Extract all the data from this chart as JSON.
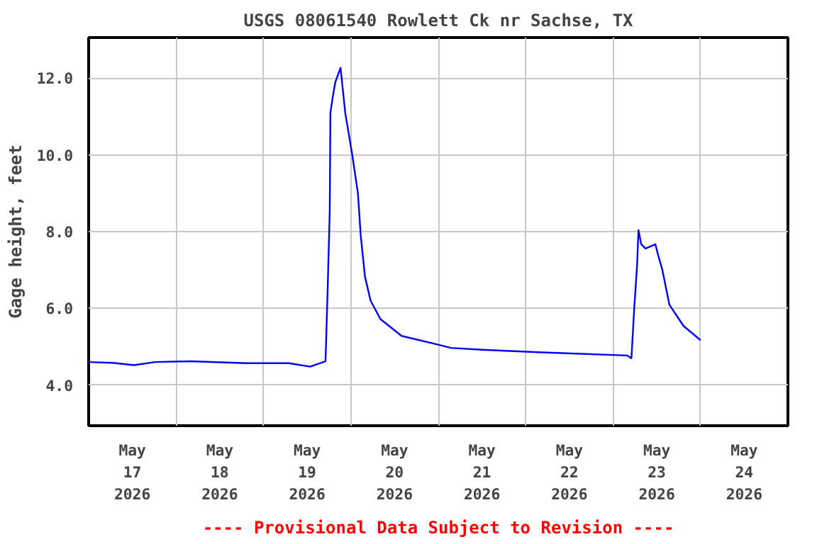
{
  "chart_data": {
    "type": "line",
    "title": "USGS 08061540 Rowlett Ck nr Sachse, TX",
    "ylabel": "Gage height, feet",
    "annotations": [
      "---- Provisional Data Subject to Revision ----"
    ],
    "x": [
      "2026-05-17T00:00",
      "2026-05-17T06:35",
      "2026-05-17T12:25",
      "2026-05-17T18:12",
      "2026-05-18T03:52",
      "2026-05-18T19:21",
      "2026-05-19T07:00",
      "2026-05-19T12:46",
      "2026-05-19T17:02",
      "2026-05-19T17:37",
      "2026-05-19T18:12",
      "2026-05-19T18:23",
      "2026-05-19T19:00",
      "2026-05-19T19:44",
      "2026-05-19T21:10",
      "2026-05-19T22:27",
      "2026-05-20T00:23",
      "2026-05-20T01:56",
      "2026-05-20T02:42",
      "2026-05-20T03:52",
      "2026-05-20T05:25",
      "2026-05-20T08:07",
      "2026-05-20T13:55",
      "2026-05-20T23:36",
      "2026-05-21T03:28",
      "2026-05-21T12:00",
      "2026-05-22T04:39",
      "2026-05-23T03:52",
      "2026-05-23T05:02",
      "2026-05-23T05:48",
      "2026-05-23T06:35",
      "2026-05-23T06:58",
      "2026-05-23T07:44",
      "2026-05-23T08:54",
      "2026-05-23T11:36",
      "2026-05-23T12:23",
      "2026-05-23T13:32",
      "2026-05-23T15:28",
      "2026-05-23T19:21",
      "2026-05-24T00:00"
    ],
    "series": [
      {
        "color": "#0000ff",
        "values": [
          4.6,
          4.58,
          4.52,
          4.6,
          4.62,
          4.57,
          4.57,
          4.48,
          4.62,
          6.46,
          8.55,
          11.1,
          11.5,
          11.9,
          12.27,
          11.1,
          10.0,
          9.0,
          7.9,
          6.83,
          6.2,
          5.72,
          5.28,
          5.06,
          4.97,
          4.92,
          4.85,
          4.77,
          4.7,
          6.0,
          7.12,
          8.04,
          7.67,
          7.56,
          7.67,
          7.38,
          7.0,
          6.09,
          5.54,
          5.17
        ]
      }
    ],
    "xlim": [
      "2026-05-17T00:00",
      "2026-05-25T00:00"
    ],
    "xticks": [
      {
        "value": "2026-05-17T12:00",
        "label": "May\n17\n2026"
      },
      {
        "value": "2026-05-18T12:00",
        "label": "May\n18\n2026"
      },
      {
        "value": "2026-05-19T12:00",
        "label": "May\n19\n2026"
      },
      {
        "value": "2026-05-20T12:00",
        "label": "May\n20\n2026"
      },
      {
        "value": "2026-05-21T12:00",
        "label": "May\n21\n2026"
      },
      {
        "value": "2026-05-22T12:00",
        "label": "May\n22\n2026"
      },
      {
        "value": "2026-05-23T12:00",
        "label": "May\n23\n2026"
      },
      {
        "value": "2026-05-24T12:00",
        "label": "May\n24\n2026"
      },
      {
        "value": "2026-05-18T00:00",
        "label": null
      },
      {
        "value": "2026-05-19T00:00",
        "label": null
      },
      {
        "value": "2026-05-20T00:00",
        "label": null
      },
      {
        "value": "2026-05-21T00:00",
        "label": null
      },
      {
        "value": "2026-05-22T00:00",
        "label": null
      },
      {
        "value": "2026-05-23T00:00",
        "label": null
      },
      {
        "value": "2026-05-24T00:00",
        "label": null
      }
    ],
    "ylim": [
      2.94,
      13.06
    ],
    "yticks": [
      {
        "value": 4,
        "label": "4.0"
      },
      {
        "value": 6,
        "label": "6.0"
      },
      {
        "value": 8,
        "label": "8.0"
      },
      {
        "value": 10,
        "label": "10.0"
      },
      {
        "value": 12,
        "label": "12.0"
      }
    ],
    "grid": true,
    "line_style": "solid",
    "marker": "none"
  }
}
